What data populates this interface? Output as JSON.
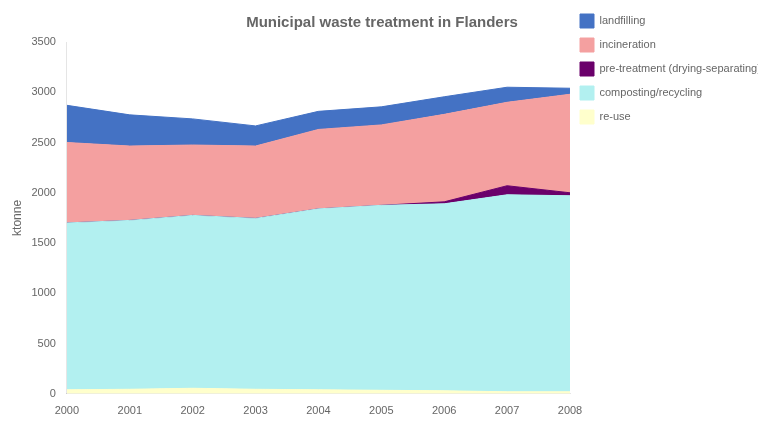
{
  "chart_data": {
    "type": "area",
    "title": "Municipal waste treatment in Flanders",
    "ylabel": "ktonne",
    "x": [
      2000,
      2001,
      2002,
      2003,
      2004,
      2005,
      2006,
      2007,
      2008
    ],
    "xlim": [
      2000,
      2008
    ],
    "xticks": [
      2000,
      2001,
      2002,
      2003,
      2004,
      2005,
      2006,
      2007,
      2008
    ],
    "ylim": [
      0,
      3500
    ],
    "yticks": [
      0,
      500,
      1000,
      1500,
      2000,
      2500,
      3000,
      3500
    ],
    "stacked": true,
    "grid": false,
    "legend": "right",
    "series": [
      {
        "name": "re-use",
        "color": "#ffffcc",
        "values": [
          40,
          45,
          55,
          45,
          40,
          35,
          30,
          20,
          20
        ]
      },
      {
        "name": "composting/recycling",
        "color": "#b2f0f0",
        "values": [
          1660,
          1680,
          1720,
          1700,
          1800,
          1840,
          1860,
          1960,
          1950
        ]
      },
      {
        "name": "pre-treatment (drying-separating)",
        "color": "#6b006b",
        "values": [
          0,
          0,
          0,
          0,
          0,
          0,
          20,
          90,
          30
        ]
      },
      {
        "name": "incineration",
        "color": "#f4a0a0",
        "values": [
          800,
          740,
          700,
          720,
          790,
          800,
          870,
          830,
          980
        ]
      },
      {
        "name": "landfilling",
        "color": "#4472c4",
        "values": [
          370,
          310,
          260,
          200,
          180,
          180,
          175,
          150,
          60
        ]
      }
    ]
  }
}
